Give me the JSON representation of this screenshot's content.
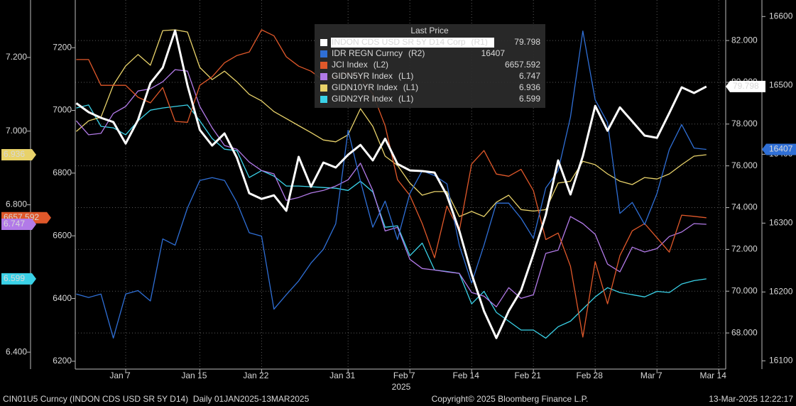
{
  "chart_data": {
    "type": "line",
    "legend_title": "Last Price",
    "x_label": "2025",
    "grid": true,
    "categories": [
      null,
      null,
      null,
      null,
      "Jan 7",
      null,
      null,
      null,
      null,
      null,
      "Jan 15",
      null,
      null,
      null,
      null,
      "Jan 22",
      null,
      null,
      null,
      null,
      null,
      null,
      "Jan 31",
      null,
      null,
      null,
      null,
      "Feb 7",
      null,
      null,
      null,
      null,
      "Feb 14",
      null,
      null,
      null,
      null,
      "Feb 21",
      null,
      null,
      null,
      null,
      "Feb 28",
      null,
      null,
      null,
      null,
      "Mar 7",
      null,
      null,
      null,
      null,
      "Mar 14"
    ],
    "axes": {
      "L1": {
        "lim": [
          6.354,
          7.356
        ],
        "ticks": [
          {
            "value": 6.4,
            "label": "6.400"
          },
          {
            "value": 6.6,
            "label": "6.600"
          },
          {
            "value": 6.8,
            "label": "6.800"
          },
          {
            "value": 7.0,
            "label": "7.000"
          },
          {
            "value": 7.2,
            "label": "7.200"
          }
        ]
      },
      "L2": {
        "lim": [
          6175,
          7352
        ],
        "ticks": [
          6200,
          6400,
          6600,
          6800,
          7000,
          7200
        ]
      },
      "R1": {
        "lim": [
          66.27,
          83.94
        ],
        "ticks": [
          {
            "value": 68,
            "label": "68.000"
          },
          {
            "value": 70,
            "label": "70.000"
          },
          {
            "value": 72,
            "label": "72.000"
          },
          {
            "value": 74,
            "label": "74.000"
          },
          {
            "value": 76,
            "label": "76.000"
          },
          {
            "value": 78,
            "label": "78.000"
          },
          {
            "value": 80,
            "label": "80.000"
          },
          {
            "value": 82,
            "label": "82.000"
          }
        ]
      },
      "R2": {
        "lim": [
          16088,
          16624
        ],
        "ticks": [
          16100,
          16200,
          16300,
          16400,
          16500,
          16600
        ]
      }
    },
    "series": [
      {
        "name": "INDON CDS USD SR 5Y D14 Corp",
        "axis_tag": "(R1)",
        "axis": "R1",
        "color": "#ffffff",
        "last": 79.798,
        "values": [
          79.0,
          78.57,
          78.3,
          78.1,
          77.07,
          78.2,
          79.96,
          80.7,
          82.48,
          79.86,
          77.72,
          76.97,
          77.55,
          76.39,
          74.69,
          74.42,
          74.59,
          73.85,
          76.43,
          75.0,
          76.16,
          75.92,
          76.53,
          77.0,
          76.26,
          77.3,
          76.09,
          75.78,
          75.75,
          75.68,
          74.59,
          72.9,
          70.82,
          69.05,
          67.76,
          69.05,
          70.04,
          71.77,
          73.64,
          76.26,
          74.63,
          76.46,
          78.87,
          77.68,
          78.8,
          78.13,
          77.45,
          77.34,
          78.53,
          79.76,
          79.49,
          79.798,
          null
        ]
      },
      {
        "name": "IDR REGN Curncy",
        "axis_tag": "(R2)",
        "axis": "R2",
        "color": "#2f6fd6",
        "last": 16407,
        "values": [
          16197,
          16192,
          16197,
          16133,
          16197,
          16202,
          16187,
          16277,
          16268,
          16322,
          16362,
          16366,
          16362,
          16330,
          16286,
          16281,
          16175,
          16196,
          16216,
          16242,
          16262,
          16299,
          16435,
          16361,
          16294,
          16332,
          16276,
          16343,
          16376,
          16369,
          16357,
          16268,
          16213,
          16268,
          16329,
          16329,
          16307,
          16278,
          16351,
          16376,
          16454,
          16579,
          16479,
          16446,
          16314,
          16330,
          16298,
          16343,
          16407,
          16443,
          16409,
          16407,
          null
        ]
      },
      {
        "name": "JCI Index",
        "axis_tag": "(L2)",
        "axis": "L2",
        "color": "#e0582a",
        "last": 6657.592,
        "values": [
          7162,
          7162,
          7080,
          7080,
          7080,
          7042,
          7024,
          7073,
          6965,
          6962,
          7080,
          7107,
          7152,
          7175,
          7186,
          7257,
          7238,
          7171,
          7141,
          7125,
          7096,
          7107,
          7121,
          7107,
          7053,
          6951,
          6779,
          6729,
          6639,
          6530,
          6695,
          6616,
          6829,
          6872,
          6797,
          6790,
          6812,
          6744,
          6588,
          6609,
          6503,
          6277,
          6518,
          6383,
          6537,
          6616,
          6639,
          6594,
          6548,
          6666,
          6662,
          6657.592,
          null
        ]
      },
      {
        "name": "GIDN5YR Index",
        "axis_tag": "(L1)",
        "axis": "L1",
        "color": "#b27ae8",
        "last": 6.747,
        "values": [
          7.028,
          6.99,
          6.994,
          7.048,
          7.067,
          7.109,
          7.115,
          7.134,
          7.167,
          7.163,
          7.067,
          7.009,
          6.961,
          6.951,
          6.916,
          6.893,
          6.884,
          6.812,
          6.82,
          6.832,
          6.839,
          6.851,
          6.868,
          6.913,
          6.839,
          6.729,
          6.739,
          6.652,
          6.627,
          6.623,
          6.618,
          6.614,
          6.562,
          6.552,
          6.523,
          6.575,
          6.546,
          6.556,
          6.668,
          6.677,
          6.768,
          6.749,
          6.72,
          6.639,
          6.618,
          6.685,
          6.672,
          6.681,
          6.714,
          6.726,
          6.749,
          6.747,
          null
        ]
      },
      {
        "name": "GIDN10YR Index",
        "axis_tag": "(L1)",
        "axis": "L1",
        "color": "#e8d26a",
        "last": 6.936,
        "values": [
          6.999,
          7.028,
          7.038,
          7.125,
          7.177,
          7.208,
          7.179,
          7.273,
          7.275,
          7.269,
          7.173,
          7.14,
          7.163,
          7.134,
          7.1,
          7.082,
          7.053,
          7.034,
          7.015,
          6.996,
          6.976,
          6.971,
          6.99,
          7.061,
          7.013,
          6.932,
          6.907,
          6.859,
          6.826,
          6.836,
          6.836,
          6.768,
          6.782,
          6.768,
          6.807,
          6.826,
          6.787,
          6.783,
          6.787,
          6.859,
          6.864,
          6.918,
          6.909,
          6.884,
          6.864,
          6.855,
          6.874,
          6.87,
          6.884,
          6.909,
          6.932,
          6.936,
          null
        ]
      },
      {
        "name": "GIDN2YR Index",
        "axis_tag": "(L1)",
        "axis": "L1",
        "color": "#3ad2e8",
        "last": 6.599,
        "values": [
          7.063,
          7.071,
          7.013,
          7.009,
          6.99,
          7.028,
          7.057,
          7.063,
          7.067,
          7.071,
          7.028,
          6.98,
          6.951,
          6.947,
          6.874,
          6.893,
          6.878,
          6.851,
          6.851,
          6.849,
          6.847,
          6.845,
          6.839,
          6.864,
          6.835,
          6.739,
          6.743,
          6.662,
          6.696,
          6.623,
          6.619,
          6.614,
          6.531,
          6.565,
          6.508,
          6.484,
          6.46,
          6.46,
          6.438,
          6.469,
          6.484,
          6.517,
          6.55,
          6.575,
          6.562,
          6.556,
          6.55,
          6.565,
          6.562,
          6.585,
          6.594,
          6.599,
          null
        ]
      }
    ]
  },
  "footer": {
    "left": "CIN01U5 Curncy (INDON CDS USD SR 5Y D14)  Daily 01JAN2025-13MAR2025",
    "center": "Copyright© 2025 Bloomberg Finance L.P.",
    "right": "13-Mar-2025 12:22:17"
  }
}
